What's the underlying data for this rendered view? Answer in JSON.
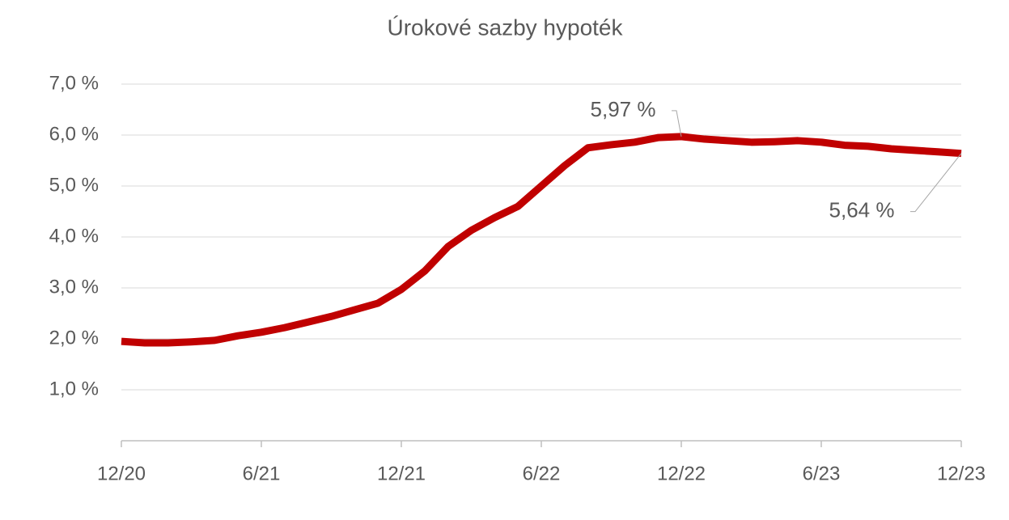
{
  "chart_data": {
    "type": "line",
    "title": "Úrokové sazby hypoték",
    "categories": [
      "12/20",
      null,
      null,
      null,
      null,
      null,
      "6/21",
      null,
      null,
      null,
      null,
      null,
      "12/21",
      null,
      null,
      null,
      null,
      null,
      "6/22",
      null,
      null,
      null,
      null,
      null,
      "12/22",
      null,
      null,
      null,
      null,
      null,
      "6/23",
      null,
      null,
      null,
      null,
      null,
      "12/23"
    ],
    "series": [
      {
        "color": "#c00000",
        "values": [
          1.95,
          1.92,
          1.92,
          1.94,
          1.97,
          2.06,
          2.13,
          2.22,
          2.33,
          2.44,
          2.57,
          2.7,
          2.97,
          3.33,
          3.81,
          4.13,
          4.38,
          4.6,
          5.0,
          5.4,
          5.75,
          5.81,
          5.86,
          5.95,
          5.97,
          5.92,
          5.89,
          5.86,
          5.87,
          5.89,
          5.86,
          5.8,
          5.78,
          5.73,
          5.7,
          5.67,
          5.64
        ],
        "value_labels": [
          null,
          null,
          null,
          null,
          null,
          null,
          null,
          null,
          null,
          null,
          null,
          null,
          null,
          null,
          null,
          null,
          null,
          null,
          null,
          null,
          null,
          null,
          null,
          null,
          "5,97 %",
          null,
          null,
          null,
          null,
          null,
          null,
          null,
          null,
          null,
          null,
          null,
          "5,64 %"
        ]
      }
    ],
    "ylim": [
      0,
      7
    ],
    "yticks": [
      {
        "value": 1,
        "label": "1,0 %"
      },
      {
        "value": 2,
        "label": "2,0 %"
      },
      {
        "value": 3,
        "label": "3,0 %"
      },
      {
        "value": 4,
        "label": "4,0 %"
      },
      {
        "value": 5,
        "label": "5,0 %"
      },
      {
        "value": 6,
        "label": "6,0 %"
      },
      {
        "value": 7,
        "label": "7,0 %"
      }
    ],
    "grid": true
  }
}
